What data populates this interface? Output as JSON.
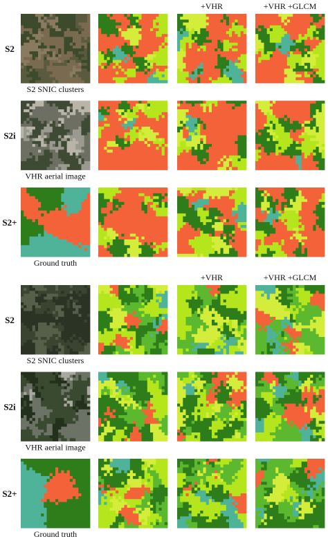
{
  "panels": [
    {
      "column_headers": [
        "+VHR",
        "+VHR +GLCM"
      ],
      "rows": [
        {
          "label": "S2",
          "caption": "S2 SNIC clusters"
        },
        {
          "label": "S2i",
          "caption": "VHR aerial image"
        },
        {
          "label": "S2+",
          "caption": "Ground truth"
        }
      ]
    },
    {
      "column_headers": [
        "+VHR",
        "+VHR +GLCM"
      ],
      "rows": [
        {
          "label": "S2",
          "caption": "S2 SNIC clusters"
        },
        {
          "label": "S2i",
          "caption": "VHR aerial image"
        },
        {
          "label": "S2+",
          "caption": "Ground truth"
        }
      ]
    }
  ]
}
